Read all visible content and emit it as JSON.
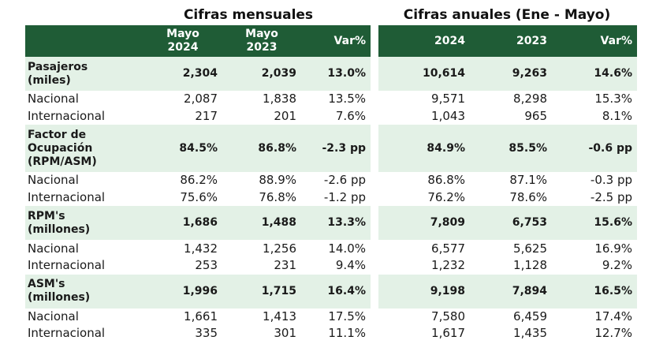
{
  "titles": {
    "monthly": "Cifras mensuales",
    "annual": "Cifras anuales (Ene - Mayo)"
  },
  "headers": {
    "left": [
      {
        "line1": "Mayo",
        "line2": "2024"
      },
      {
        "line1": "Mayo",
        "line2": "2023"
      },
      {
        "line1": "Var%",
        "line2": ""
      }
    ],
    "right": [
      "2024",
      "2023",
      "Var%"
    ]
  },
  "rows": [
    {
      "label": "Pasajeros (miles)",
      "label_lines": [
        "Pasajeros",
        "(miles)"
      ],
      "bold": true,
      "size": "h2",
      "m24": "2,304",
      "m23": "2,039",
      "mvar": "13.0%",
      "a24": "10,614",
      "a23": "9,263",
      "avar": "14.6%"
    },
    {
      "label": "Nacional",
      "bold": false,
      "m24": "2,087",
      "m23": "1,838",
      "mvar": "13.5%",
      "a24": "9,571",
      "a23": "8,298",
      "avar": "15.3%"
    },
    {
      "label": "Internacional",
      "bold": false,
      "m24": "217",
      "m23": "201",
      "mvar": "7.6%",
      "a24": "1,043",
      "a23": "965",
      "avar": "8.1%"
    },
    {
      "label": "Factor de Ocupación (RPM/ASM)",
      "label_lines": [
        "Factor de",
        "Ocupación",
        "(RPM/ASM)"
      ],
      "bold": true,
      "size": "h3",
      "m24": "84.5%",
      "m23": "86.8%",
      "mvar": "-2.3 pp",
      "a24": "84.9%",
      "a23": "85.5%",
      "avar": "-0.6 pp"
    },
    {
      "label": "Nacional",
      "bold": false,
      "m24": "86.2%",
      "m23": "88.9%",
      "mvar": "-2.6 pp",
      "a24": "86.8%",
      "a23": "87.1%",
      "avar": "-0.3 pp"
    },
    {
      "label": "Internacional",
      "bold": false,
      "m24": "75.6%",
      "m23": "76.8%",
      "mvar": "-1.2 pp",
      "a24": "76.2%",
      "a23": "78.6%",
      "avar": "-2.5 pp"
    },
    {
      "label": "RPM's (millones)",
      "label_lines": [
        "RPM's",
        "(millones)"
      ],
      "bold": true,
      "size": "h2",
      "m24": "1,686",
      "m23": "1,488",
      "mvar": "13.3%",
      "a24": "7,809",
      "a23": "6,753",
      "avar": "15.6%"
    },
    {
      "label": "Nacional",
      "bold": false,
      "m24": "1,432",
      "m23": "1,256",
      "mvar": "14.0%",
      "a24": "6,577",
      "a23": "5,625",
      "avar": "16.9%"
    },
    {
      "label": "Internacional",
      "bold": false,
      "m24": "253",
      "m23": "231",
      "mvar": "9.4%",
      "a24": "1,232",
      "a23": "1,128",
      "avar": "9.2%"
    },
    {
      "label": "ASM's (millones)",
      "label_lines": [
        "ASM's",
        "(millones)"
      ],
      "bold": true,
      "size": "h2",
      "m24": "1,996",
      "m23": "1,715",
      "mvar": "16.4%",
      "a24": "9,198",
      "a23": "7,894",
      "avar": "16.5%"
    },
    {
      "label": "Nacional",
      "bold": false,
      "m24": "1,661",
      "m23": "1,413",
      "mvar": "17.5%",
      "a24": "7,580",
      "a23": "6,459",
      "avar": "17.4%"
    },
    {
      "label": "Internacional",
      "bold": false,
      "m24": "335",
      "m23": "301",
      "mvar": "11.1%",
      "a24": "1,617",
      "a23": "1,435",
      "avar": "12.7%"
    }
  ],
  "colors": {
    "header_bg": "#1f5c36",
    "highlight_bg": "#e3f1e6",
    "header_text": "#ffffff"
  }
}
